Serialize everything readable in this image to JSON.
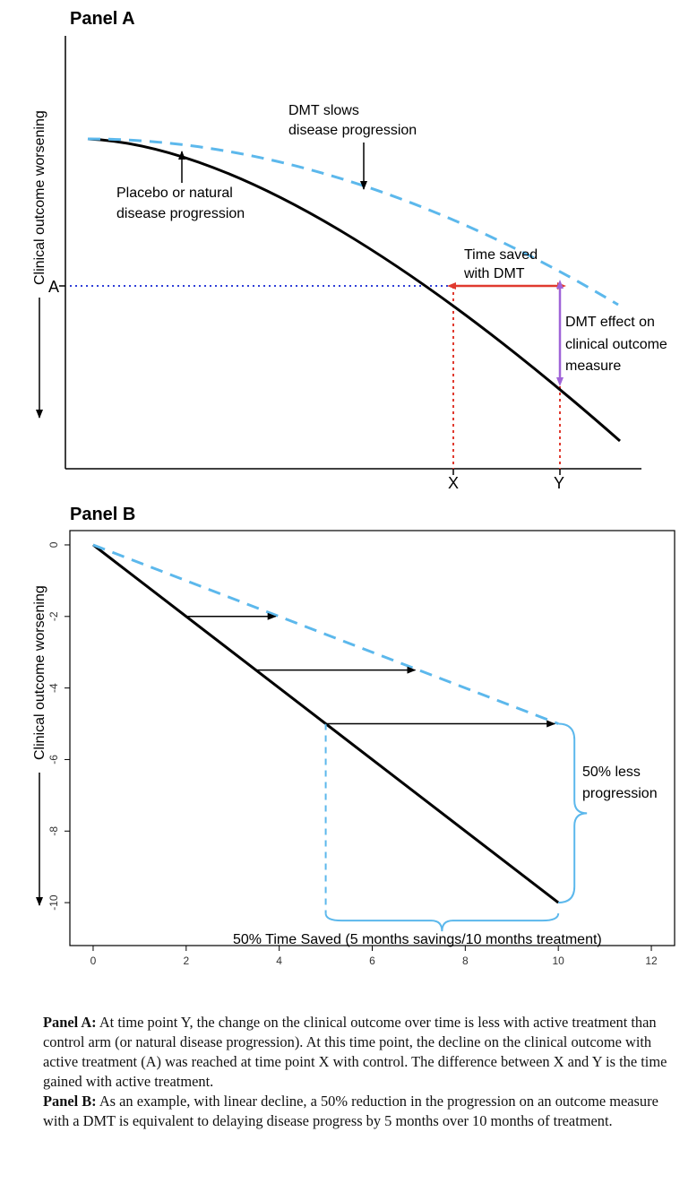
{
  "chart_data": [
    {
      "type": "line",
      "title": "Panel A",
      "ylabel": "Clinical outcome worsening",
      "series": [
        {
          "name": ""
        },
        {
          "name": ""
        }
      ],
      "annotations": {
        "dmt_line1": "DMT slows",
        "dmt_line2": "disease progression",
        "placebo_line1": "Placebo or natural",
        "placebo_line2": "disease progression",
        "time_saved_line1": "Time saved",
        "time_saved_line2": "with DMT",
        "effect_line1": "DMT effect on",
        "effect_line2": "clinical outcome",
        "effect_line3": "measure",
        "level_label": "A",
        "x_label": "X",
        "y_label": "Y"
      },
      "colors": {
        "placebo": "#000000",
        "dmt": "#5cb8ec",
        "time_arrow": "#e03a2f",
        "effect_arrow": "#a064d8",
        "guide": "#2f3fd8"
      }
    },
    {
      "type": "line",
      "title": "Panel B",
      "ylabel": "Clinical outcome worsening",
      "x_ticks": [
        0,
        2,
        4,
        6,
        8,
        10,
        12
      ],
      "y_ticks": [
        0,
        -2,
        -4,
        -6,
        -8,
        -10
      ],
      "xlim": [
        -0.5,
        12.5
      ],
      "ylim": [
        -11.2,
        0.4
      ],
      "series": [
        {
          "name": "",
          "x": [
            0,
            10
          ],
          "y": [
            0,
            -10
          ]
        },
        {
          "name": "",
          "x": [
            0,
            10
          ],
          "y": [
            0,
            -5
          ]
        }
      ],
      "arrows": [
        {
          "from": [
            2,
            -2
          ],
          "to": [
            4,
            -2
          ]
        },
        {
          "from": [
            3.5,
            -3.5
          ],
          "to": [
            7,
            -3.5
          ]
        },
        {
          "from": [
            5,
            -5
          ],
          "to": [
            10,
            -5
          ]
        }
      ],
      "annotations": {
        "less_progression_line1": "50% less",
        "less_progression_line2": "progression",
        "time_saved": "50% Time Saved (5 months savings/10 months treatment)"
      },
      "colors": {
        "placebo": "#000000",
        "dmt": "#5cb8ec",
        "brace": "#5cb8ec"
      }
    }
  ],
  "caption": {
    "a_label": "Panel A:",
    "a_text": " At time point Y, the change on the clinical outcome over time is less with active treatment than control arm (or natural disease progression). At this time point, the decline on the clinical outcome with active treatment (A) was reached at time point X with control. The difference between X and Y is the time gained with active treatment.",
    "b_label": "Panel B:",
    "b_text": " As an example, with linear decline, a 50% reduction in the progression on an outcome measure with a DMT is equivalent to delaying disease progress by 5 months over 10 months of treatment."
  }
}
